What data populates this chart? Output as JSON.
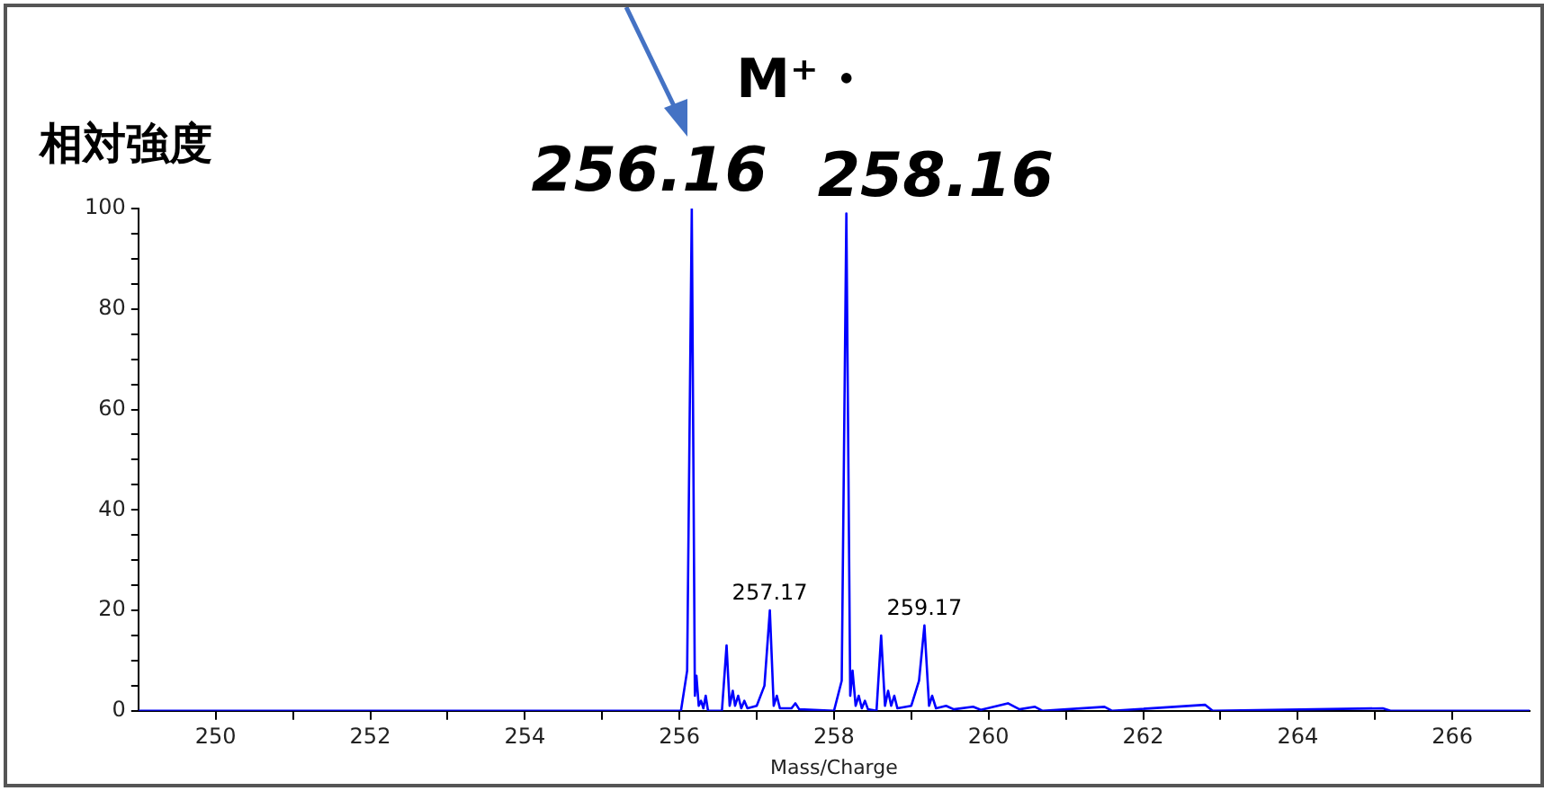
{
  "chart_data": {
    "type": "line",
    "title": "M⁺・",
    "ylabel": "相対強度",
    "xlabel": "Mass/Charge",
    "x": [
      249,
      256.02,
      256.1,
      256.16,
      256.2,
      256.22,
      256.25,
      256.28,
      256.31,
      256.34,
      256.37,
      256.55,
      256.61,
      256.65,
      256.69,
      256.72,
      256.76,
      256.8,
      256.84,
      256.88,
      257,
      257.1,
      257.17,
      257.22,
      257.26,
      257.3,
      257.45,
      257.5,
      257.55,
      258,
      258.1,
      258.16,
      258.21,
      258.24,
      258.28,
      258.32,
      258.36,
      258.4,
      258.44,
      258.55,
      258.61,
      258.66,
      258.7,
      258.74,
      258.78,
      258.82,
      259,
      259.1,
      259.17,
      259.23,
      259.27,
      259.32,
      259.45,
      259.55,
      259.8,
      259.9,
      260.25,
      260.4,
      260.6,
      260.7,
      261.5,
      261.6,
      262.8,
      262.9,
      265.1,
      265.2,
      267
    ],
    "series": [
      {
        "color": "#0000ff",
        "values": [
          0,
          0,
          8,
          100,
          3,
          7,
          1,
          2,
          0.5,
          3,
          0,
          0,
          13,
          1,
          4,
          1,
          3,
          0.5,
          2,
          0.5,
          1,
          5,
          20,
          1,
          3,
          0.5,
          0.5,
          1.5,
          0.3,
          0,
          6,
          99,
          3,
          8,
          1,
          3,
          0.5,
          2,
          0.3,
          0,
          15,
          1,
          4,
          1,
          3,
          0.5,
          1,
          6,
          17,
          1,
          3,
          0.5,
          1,
          0.3,
          0.8,
          0.2,
          1.5,
          0.3,
          0.8,
          0,
          0.8,
          0,
          1.2,
          0,
          0.5,
          0,
          0
        ]
      }
    ],
    "xlim": [
      249,
      267
    ],
    "xticks": [
      250,
      {
        "value": 251,
        "label": null
      },
      252,
      {
        "value": 253,
        "label": null
      },
      254,
      {
        "value": 255,
        "label": null
      },
      256,
      {
        "value": 257,
        "label": null
      },
      258,
      {
        "value": 259,
        "label": null
      },
      260,
      {
        "value": 261,
        "label": null
      },
      262,
      {
        "value": 263,
        "label": null
      },
      264,
      {
        "value": 265,
        "label": null
      },
      266
    ],
    "ylim": [
      0,
      100
    ],
    "yticks": [
      0,
      {
        "value": 5,
        "label": null
      },
      {
        "value": 10,
        "label": null
      },
      {
        "value": 15,
        "label": null
      },
      20,
      {
        "value": 25,
        "label": null
      },
      {
        "value": 30,
        "label": null
      },
      {
        "value": 35,
        "label": null
      },
      40,
      {
        "value": 45,
        "label": null
      },
      {
        "value": 50,
        "label": null
      },
      {
        "value": 55,
        "label": null
      },
      60,
      {
        "value": 65,
        "label": null
      },
      {
        "value": 70,
        "label": null
      },
      {
        "value": 75,
        "label": null
      },
      80,
      {
        "value": 85,
        "label": null
      },
      {
        "value": 90,
        "label": null
      },
      {
        "value": 95,
        "label": null
      },
      100
    ],
    "grid": false,
    "legend": false,
    "marker": "none",
    "line_style": "solid",
    "annotations": [
      {
        "text": "256.16",
        "x": 256.16,
        "y": 100
      },
      {
        "text": "258.16",
        "x": 258.16,
        "y": 99
      },
      {
        "text": "257.17",
        "x": 257.17,
        "y": 20
      },
      {
        "text": "259.17",
        "x": 259.17,
        "y": 17
      }
    ]
  }
}
